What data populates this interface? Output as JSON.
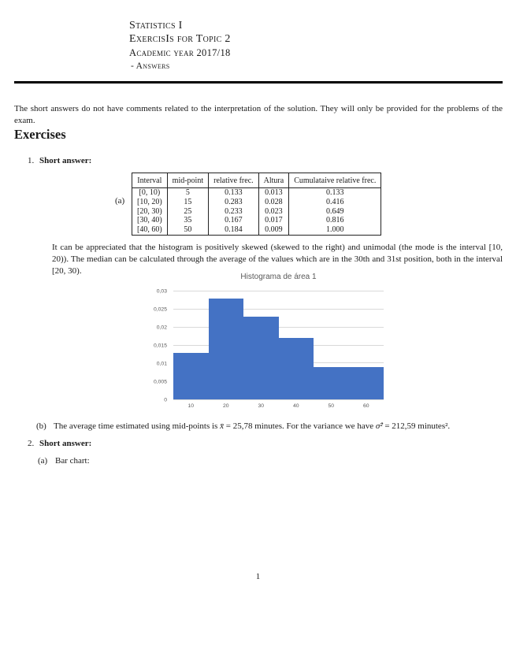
{
  "header": {
    "course": "Statistics I",
    "title": "ExercisIs for Topic 2",
    "academic_year": "Academic year 2017/18",
    "answers": "- Answers"
  },
  "intro": "The short answers do not have comments related to the interpretation of the solution. They will only be provided for the problems of the exam.",
  "section_title": "Exercises",
  "exercise1": {
    "number": "1.",
    "title": "Short answer:",
    "part_a_label": "(a)",
    "table": {
      "headers": [
        "Interval",
        "mid-point",
        "relative frec.",
        "Altura",
        "Cumulataive relative frec."
      ],
      "rows": [
        [
          "[0, 10)",
          "5",
          "0.133",
          "0.013",
          "0.133"
        ],
        [
          "[10, 20)",
          "15",
          "0.283",
          "0.028",
          "0.416"
        ],
        [
          "[20, 30)",
          "25",
          "0.233",
          "0.023",
          "0.649"
        ],
        [
          "[30, 40)",
          "35",
          "0.167",
          "0.017",
          "0.816"
        ],
        [
          "[40, 60)",
          "50",
          "0.184",
          "0.009",
          "1.000"
        ]
      ]
    },
    "comment": "It can be appreciated that the histogram is positively skewed (skewed to the right) and unimodal (the mode is the interval [10, 20)). The median can be calculated through the average of the values which are in the 30th and 31st position, both in the interval [20, 30).",
    "part_b_label": "(b)",
    "part_b": {
      "text1": "The average time estimated using mid-points is ",
      "math1": "x̄",
      "text2": " = 25,78 minutes. For the variance we have ",
      "math2": "σ̂²",
      "text3": " = 212,59 minutes²."
    }
  },
  "exercise2": {
    "number": "2.",
    "title": "Short answer:",
    "part_a_label": "(a)",
    "part_a_text": "Bar chart:"
  },
  "chart_data": {
    "type": "bar",
    "title": "Histograma de área 1",
    "bars": [
      {
        "interval": "[0,10)",
        "x0": 0,
        "x1": 10,
        "value": 0.013
      },
      {
        "interval": "[10,20)",
        "x0": 10,
        "x1": 20,
        "value": 0.028
      },
      {
        "interval": "[20,30)",
        "x0": 20,
        "x1": 30,
        "value": 0.023
      },
      {
        "interval": "[30,40)",
        "x0": 30,
        "x1": 40,
        "value": 0.017
      },
      {
        "interval": "[40,60)",
        "x0": 40,
        "x1": 60,
        "value": 0.009
      }
    ],
    "xlim": [
      0,
      60
    ],
    "ylim": [
      0,
      0.03
    ],
    "x_ticks": [
      {
        "label": "10",
        "pos": 5
      },
      {
        "label": "20",
        "pos": 15
      },
      {
        "label": "30",
        "pos": 25
      },
      {
        "label": "40",
        "pos": 35
      },
      {
        "label": "50",
        "pos": 45
      },
      {
        "label": "60",
        "pos": 55
      }
    ],
    "y_ticks": [
      {
        "label": "0",
        "value": 0
      },
      {
        "label": "0,005",
        "value": 0.005
      },
      {
        "label": "0,01",
        "value": 0.01
      },
      {
        "label": "0,015",
        "value": 0.015
      },
      {
        "label": "0,02",
        "value": 0.02
      },
      {
        "label": "0,025",
        "value": 0.025
      },
      {
        "label": "0,03",
        "value": 0.03
      }
    ],
    "bar_color": "#4472C4",
    "gridline_color": "#d9d9d9",
    "label_color": "#595959",
    "grid": true,
    "legend_position": "none"
  },
  "page": {
    "number": "1"
  }
}
